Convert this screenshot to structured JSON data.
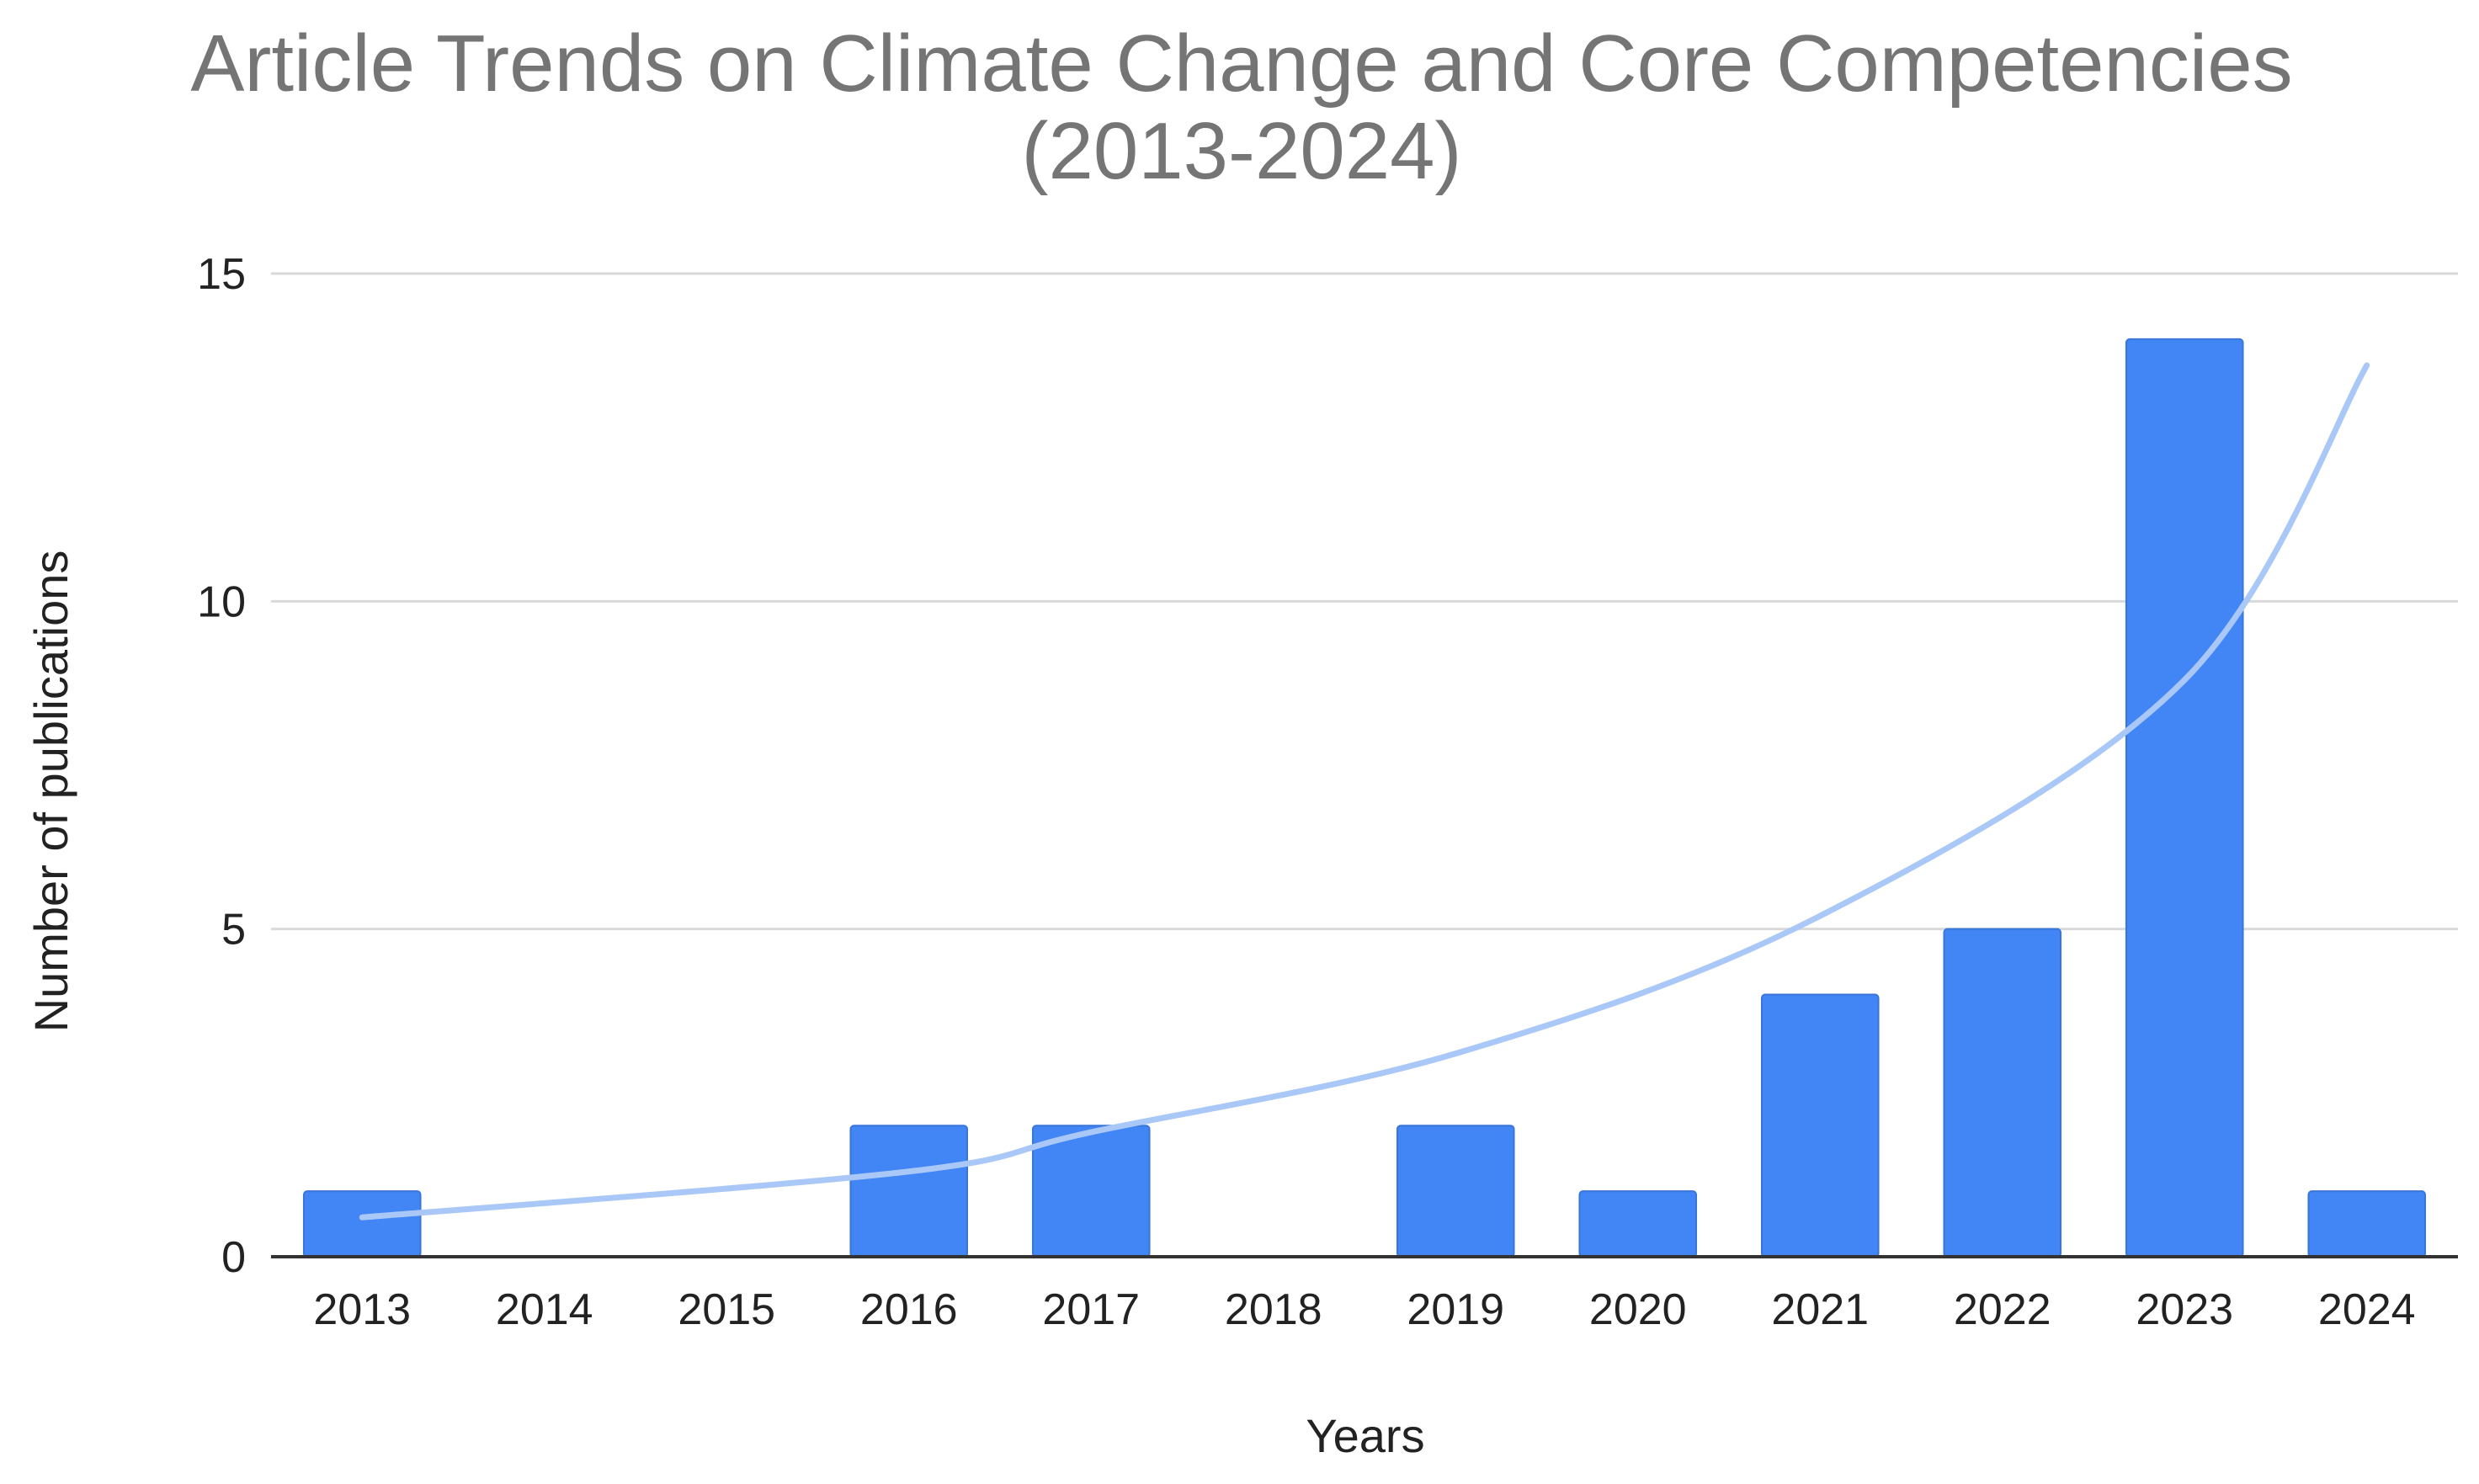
{
  "chart_data": {
    "type": "bar",
    "title": "Article Trends on Climate Change and Core Competencies (2013-2024)",
    "title_lines": [
      "Article Trends on Climate Change and Core Competencies",
      "(2013-2024)"
    ],
    "xlabel": "Years",
    "ylabel": "Number of publications",
    "categories": [
      "2013",
      "2014",
      "2015",
      "2016",
      "2017",
      "2018",
      "2019",
      "2020",
      "2021",
      "2022",
      "2023",
      "2024"
    ],
    "series": [
      {
        "values": [
          1,
          0,
          0,
          2,
          2,
          0,
          2,
          1,
          4,
          5,
          14,
          1
        ],
        "color": "#4285f4"
      }
    ],
    "trendline": {
      "type": "exponential",
      "color": "#a9c8f8",
      "x": [
        "2013",
        "2016",
        "2017",
        "2019",
        "2021",
        "2023",
        "2024"
      ],
      "values": [
        0.6,
        1.3,
        1.9,
        3.1,
        5.2,
        8.8,
        13.6
      ]
    },
    "ylim": [
      0,
      15
    ],
    "yticks": [
      0,
      5,
      10,
      15
    ],
    "grid": true,
    "legend": "none"
  }
}
